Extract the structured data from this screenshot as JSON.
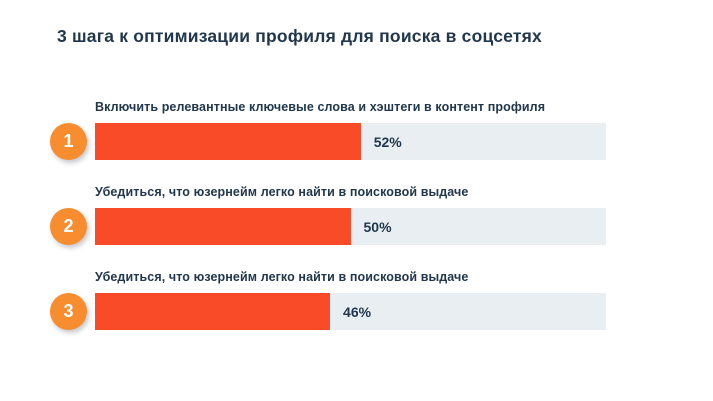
{
  "title": "3 шага к оптимизации профиля для поиска в соцсетях",
  "colors": {
    "background": "#FFFFFF",
    "text_navy": "#21374D",
    "bar_fill": "#F94B28",
    "bar_track": "#E9EEF3",
    "step_badge_orange": "#F78D2E",
    "badge_number_color": "#FFFFFF"
  },
  "chart_data": {
    "type": "bar",
    "orientation": "horizontal",
    "title": "3 шага к оптимизации профиля для поиска в соцсетях",
    "categories": [
      "Включить релевантные ключевые слова и хэштеги в контент профиля",
      "Убедиться, что юзернейм легко найти в поисковой выдаче",
      "Убедиться, что юзернейм легко найти в поисковой выдаче"
    ],
    "values": [
      52,
      50,
      46
    ],
    "value_labels": [
      "52%",
      "50%",
      "46%"
    ],
    "xlim": [
      0,
      100
    ],
    "grid": false,
    "legend": false,
    "items": [
      {
        "step": "1",
        "label": "Включить релевантные ключевые слова и хэштеги в контент профиля",
        "value": 52,
        "percent_label": "52%"
      },
      {
        "step": "2",
        "label": "Убедиться, что юзернейм легко найти в поисковой выдаче",
        "value": 50,
        "percent_label": "50%"
      },
      {
        "step": "3",
        "label": "Убедиться, что юзернейм легко найти в поисковой выдаче",
        "value": 46,
        "percent_label": "46%"
      }
    ]
  }
}
